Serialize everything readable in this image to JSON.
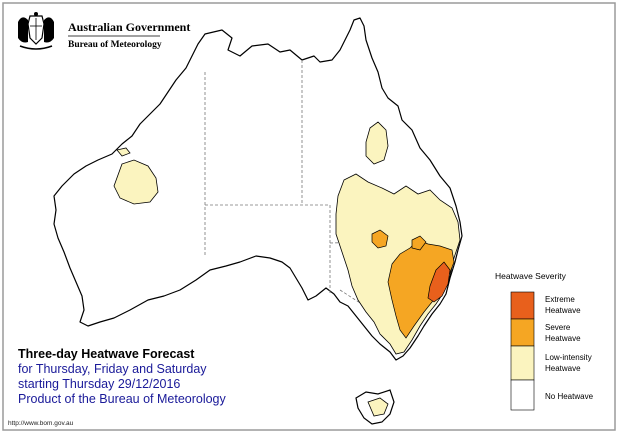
{
  "header": {
    "government": "Australian Government",
    "bureau": "Bureau of Meteorology",
    "crest": "coat-of-arms-emblem"
  },
  "caption": {
    "title": "Three-day Heatwave Forecast",
    "line1": "for Thursday, Friday and Saturday",
    "line2": "starting Thursday 29/12/2016",
    "line3": "Product of the Bureau of Meteorology"
  },
  "legend": {
    "title": "Heatwave Severity",
    "items": [
      {
        "label_1": "Extreme",
        "label_2": "Heatwave",
        "color": "#e8601c"
      },
      {
        "label_1": "Severe",
        "label_2": "Heatwave",
        "color": "#f5a623"
      },
      {
        "label_1": "Low-intensity",
        "label_2": "Heatwave",
        "color": "#fbf4bf"
      },
      {
        "label_1": "No Heatwave",
        "label_2": "",
        "color": "#ffffff"
      }
    ]
  },
  "footer": {
    "url": "http://www.bom.gov.au"
  },
  "colors": {
    "frame_border": "#999999",
    "coastline": "#000000",
    "state_borders": "#777777",
    "low_intensity": "#fbf4bf",
    "severe": "#f5a623",
    "extreme": "#e8601c"
  }
}
